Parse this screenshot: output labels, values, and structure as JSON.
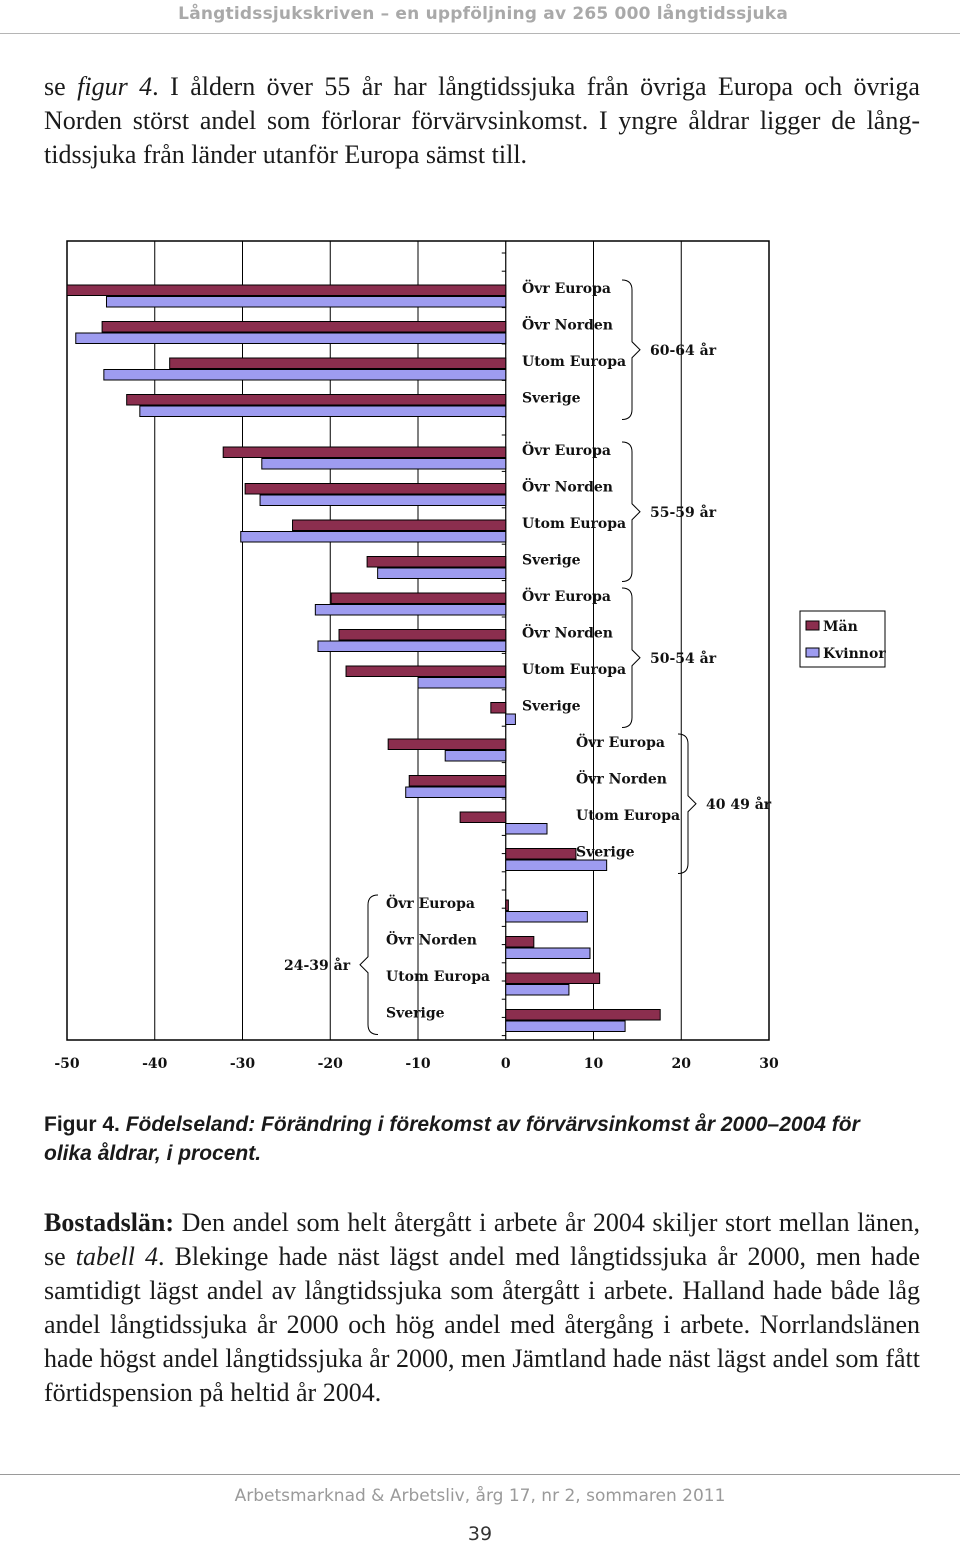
{
  "header": {
    "running_title": "Långtidssjukskriven – en uppföljning av 265 000 långtidssjuka"
  },
  "intro": {
    "lines": [
      {
        "parts": [
          {
            "t": "se "
          },
          {
            "t": "figur 4",
            "i": true
          },
          {
            "t": ". I åldern över 55 år har långtidssjuka från övriga Europa och övriga"
          }
        ],
        "justify": true
      },
      {
        "parts": [
          {
            "t": "Norden störst andel som förlorar förvärvsinkomst. I yngre åldrar ligger de lång-"
          }
        ],
        "justify": true
      },
      {
        "parts": [
          {
            "t": "tidssjuka från länder utanför Europa sämst till."
          }
        ],
        "justify": false
      }
    ]
  },
  "chart_data": {
    "type": "bar",
    "orientation": "horizontal",
    "xlim": [
      -50,
      30
    ],
    "xticks": [
      "-50",
      "-40",
      "-30",
      "-20",
      "-10",
      "0",
      "10",
      "20",
      "30"
    ],
    "legend": {
      "position": "right",
      "entries": [
        {
          "name": "Män",
          "color": "#8b2e4e"
        },
        {
          "name": "Kvinnor",
          "color": "#9e9cf0"
        }
      ]
    },
    "series": [
      {
        "name": "Män"
      },
      {
        "name": "Kvinnor"
      }
    ],
    "groups": [
      {
        "label": "60-64 år",
        "categories": [
          {
            "name": "Övr Europa",
            "men": -50.0,
            "women": -45.5
          },
          {
            "name": "Övr Norden",
            "men": -46.0,
            "women": -49.0
          },
          {
            "name": "Utom Europa",
            "men": -38.3,
            "women": -45.8
          },
          {
            "name": "Sverige",
            "men": -43.2,
            "women": -41.7
          }
        ]
      },
      {
        "label": "55-59 år",
        "categories": [
          {
            "name": "Övr Europa",
            "men": -32.2,
            "women": -27.8
          },
          {
            "name": "Övr Norden",
            "men": -29.7,
            "women": -28.0
          },
          {
            "name": "Utom Europa",
            "men": -24.3,
            "women": -30.2
          },
          {
            "name": "Sverige",
            "men": -15.8,
            "women": -14.6
          }
        ]
      },
      {
        "label": "50-54 år",
        "categories": [
          {
            "name": "Övr Europa",
            "men": -19.9,
            "women": -21.7
          },
          {
            "name": "Övr Norden",
            "men": -19.0,
            "women": -21.4
          },
          {
            "name": "Utom Europa",
            "men": -18.2,
            "women": -10.0
          },
          {
            "name": "Sverige",
            "men": -1.7,
            "women": 1.1
          }
        ]
      },
      {
        "label": "40 49 år",
        "categories": [
          {
            "name": "Övr Europa",
            "men": -13.4,
            "women": -6.9
          },
          {
            "name": "Övr Norden",
            "men": -11.0,
            "women": -11.4
          },
          {
            "name": "Utom Europa",
            "men": -5.2,
            "women": 4.7
          },
          {
            "name": "Sverige",
            "men": 8.0,
            "women": 11.5
          }
        ]
      },
      {
        "label": "24-39 år",
        "categories": [
          {
            "name": "Övr Europa",
            "men": 0.3,
            "women": 9.3
          },
          {
            "name": "Övr Norden",
            "men": 3.2,
            "women": 9.6
          },
          {
            "name": "Utom Europa",
            "men": 10.7,
            "women": 7.2
          },
          {
            "name": "Sverige",
            "men": 17.6,
            "women": 13.6
          }
        ]
      }
    ]
  },
  "caption": {
    "label": "Figur 4.",
    "text": "Födelseland: Förändring i förekomst av förvärvsinkomst år 2000–2004 för olika åldrar, i procent."
  },
  "body": {
    "parts": [
      {
        "t": "Bostadslän:",
        "b": true
      },
      {
        "t": " Den andel som helt återgått i arbete år 2004 skiljer stort mellan länen, se "
      },
      {
        "t": "tabell 4",
        "i": true
      },
      {
        "t": ". Blekinge hade näst lägst andel med långtidssjuka år 2000, men hade samtidigt lägst andel av långtidssjuka som återgått i arbete. Halland hade både låg andel långtidssjuka år 2000 och hög andel med återgång i arbete. Norrlandslänen hade högst andel långtidssjuka år 2000, men Jämtland hade näst lägst andel som fått förtidspension på heltid år 2004."
      }
    ]
  },
  "footer": {
    "journal": "Arbetsmarknad & Arbetsliv, årg 17, nr 2, sommaren 2011",
    "page_number": "39"
  }
}
